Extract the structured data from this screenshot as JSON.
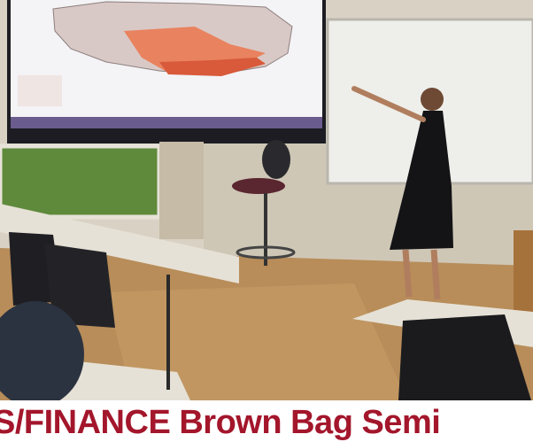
{
  "caption": {
    "text": "S/FINANCE Brown Bag Semi"
  }
}
